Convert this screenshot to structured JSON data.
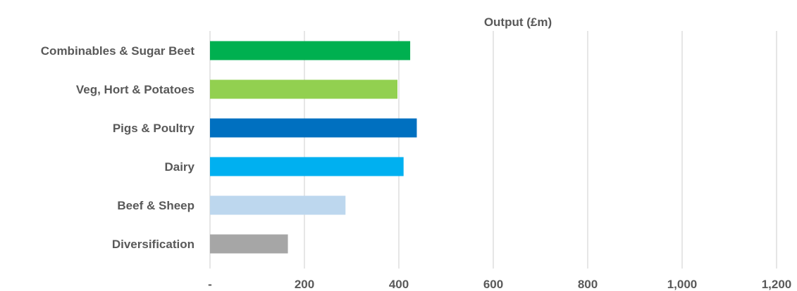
{
  "chart_data": {
    "type": "bar",
    "orientation": "horizontal",
    "title": "Output (£m)",
    "xlabel": "",
    "ylabel": "",
    "categories": [
      "Combinables & Sugar Beet",
      "Veg, Hort & Potatoes",
      "Pigs & Poultry",
      "Dairy",
      "Beef & Sheep",
      "Diversification"
    ],
    "values": [
      424,
      397,
      438,
      410,
      287,
      165
    ],
    "colors": [
      "#00b050",
      "#92d050",
      "#0070c0",
      "#00b0f0",
      "#bdd7ee",
      "#a6a6a6"
    ],
    "xlim": [
      0,
      1200
    ],
    "ticks": [
      0,
      200,
      400,
      600,
      800,
      1000,
      1200
    ],
    "tick_labels": [
      "-",
      "200",
      "400",
      "600",
      "800",
      "1,000",
      "1,200"
    ],
    "grid": true,
    "legend": "none"
  }
}
